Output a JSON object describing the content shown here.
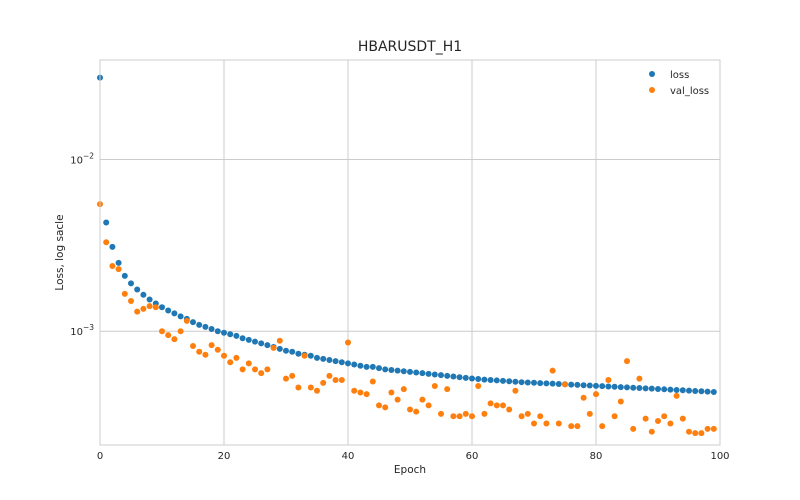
{
  "chart_data": {
    "type": "scatter",
    "title": "HBARUSDT_H1",
    "xlabel": "Epoch",
    "ylabel": "Loss, log sacle",
    "xlim": [
      0,
      100
    ],
    "ylim": [
      0.0002175,
      0.038
    ],
    "yscale": "log",
    "grid": true,
    "legend_position": "top-right",
    "x_ticks": [
      0,
      20,
      40,
      60,
      80,
      100
    ],
    "x_tick_labels": [
      "0",
      "20",
      "40",
      "60",
      "80",
      "100"
    ],
    "y_ticks": [
      0.001,
      0.01
    ],
    "y_tick_labels": [
      {
        "base": "10",
        "exp": "−3"
      },
      {
        "base": "10",
        "exp": "−2"
      }
    ],
    "series": [
      {
        "name": "loss",
        "color": "#1f77b4",
        "x": [
          0,
          1,
          2,
          3,
          4,
          5,
          6,
          7,
          8,
          9,
          10,
          11,
          12,
          13,
          14,
          15,
          16,
          17,
          18,
          19,
          20,
          21,
          22,
          23,
          24,
          25,
          26,
          27,
          28,
          29,
          30,
          31,
          32,
          33,
          34,
          35,
          36,
          37,
          38,
          39,
          40,
          41,
          42,
          43,
          44,
          45,
          46,
          47,
          48,
          49,
          50,
          51,
          52,
          53,
          54,
          55,
          56,
          57,
          58,
          59,
          60,
          61,
          62,
          63,
          64,
          65,
          66,
          67,
          68,
          69,
          70,
          71,
          72,
          73,
          74,
          75,
          76,
          77,
          78,
          79,
          80,
          81,
          82,
          83,
          84,
          85,
          86,
          87,
          88,
          89,
          90,
          91,
          92,
          93,
          94,
          95,
          96,
          97,
          98,
          99
        ],
        "values": [
          0.03,
          0.0043,
          0.0031,
          0.0025,
          0.0021,
          0.0019,
          0.00175,
          0.00163,
          0.00153,
          0.00145,
          0.00138,
          0.00132,
          0.00127,
          0.00122,
          0.00118,
          0.00113,
          0.00109,
          0.00106,
          0.00103,
          0.001,
          0.00098,
          0.00096,
          0.00094,
          0.00091,
          0.00089,
          0.00087,
          0.00085,
          0.00083,
          0.00081,
          0.00079,
          0.00077,
          0.00076,
          0.00074,
          0.00073,
          0.00072,
          0.0007,
          0.00069,
          0.00068,
          0.00067,
          0.00066,
          0.00065,
          0.00064,
          0.00063,
          0.00062,
          0.00062,
          0.00061,
          0.0006,
          0.000595,
          0.00059,
          0.000585,
          0.00058,
          0.000575,
          0.00057,
          0.000565,
          0.00056,
          0.000555,
          0.00055,
          0.000545,
          0.00054,
          0.000535,
          0.000531,
          0.000527,
          0.000523,
          0.00052,
          0.000517,
          0.000514,
          0.000511,
          0.000508,
          0.000505,
          0.000503,
          0.000501,
          0.000499,
          0.000497,
          0.000495,
          0.000493,
          0.000491,
          0.000489,
          0.000487,
          0.000485,
          0.000483,
          0.000481,
          0.000479,
          0.000477,
          0.000475,
          0.000473,
          0.000471,
          0.000469,
          0.000467,
          0.000465,
          0.000463,
          0.000461,
          0.000459,
          0.000457,
          0.000455,
          0.000453,
          0.000451,
          0.000449,
          0.000447,
          0.000445,
          0.000443
        ]
      },
      {
        "name": "val_loss",
        "color": "#ff7f0e",
        "x": [
          0,
          1,
          2,
          3,
          4,
          5,
          6,
          7,
          8,
          9,
          10,
          11,
          12,
          13,
          14,
          15,
          16,
          17,
          18,
          19,
          20,
          21,
          22,
          23,
          24,
          25,
          26,
          27,
          28,
          29,
          30,
          31,
          32,
          33,
          34,
          35,
          36,
          37,
          38,
          39,
          40,
          41,
          42,
          43,
          44,
          45,
          46,
          47,
          48,
          49,
          50,
          51,
          52,
          53,
          54,
          55,
          56,
          57,
          58,
          59,
          60,
          61,
          62,
          63,
          64,
          65,
          66,
          67,
          68,
          69,
          70,
          71,
          72,
          73,
          74,
          75,
          76,
          77,
          78,
          79,
          80,
          81,
          82,
          83,
          84,
          85,
          86,
          87,
          88,
          89,
          90,
          91,
          92,
          93,
          94,
          95,
          96,
          97,
          98,
          99
        ],
        "values": [
          0.0055,
          0.0033,
          0.0024,
          0.0023,
          0.00165,
          0.0015,
          0.0013,
          0.00135,
          0.0014,
          0.00138,
          0.001,
          0.00095,
          0.0009,
          0.001,
          0.00115,
          0.00082,
          0.00076,
          0.00073,
          0.00083,
          0.00078,
          0.00072,
          0.00066,
          0.0007,
          0.0006,
          0.00065,
          0.0006,
          0.00057,
          0.0006,
          0.0008,
          0.00088,
          0.00053,
          0.00055,
          0.00047,
          0.00072,
          0.00047,
          0.00045,
          0.0005,
          0.00055,
          0.00052,
          0.00052,
          0.00086,
          0.00045,
          0.00044,
          0.00043,
          0.00051,
          0.00037,
          0.00036,
          0.00044,
          0.0004,
          0.00046,
          0.00035,
          0.00034,
          0.0004,
          0.00037,
          0.00048,
          0.00033,
          0.00046,
          0.00032,
          0.00032,
          0.00033,
          0.00032,
          0.00048,
          0.00033,
          0.00038,
          0.00037,
          0.00037,
          0.00035,
          0.00045,
          0.00032,
          0.00033,
          0.00029,
          0.00032,
          0.00029,
          0.00059,
          0.00029,
          0.00049,
          0.00028,
          0.00028,
          0.00041,
          0.00033,
          0.00043,
          0.00028,
          0.00052,
          0.00032,
          0.00039,
          0.00067,
          0.00027,
          0.00053,
          0.00031,
          0.00026,
          0.0003,
          0.00032,
          0.00029,
          0.00042,
          0.00031,
          0.00026,
          0.000255,
          0.000255,
          0.00027,
          0.00027
        ]
      }
    ]
  }
}
